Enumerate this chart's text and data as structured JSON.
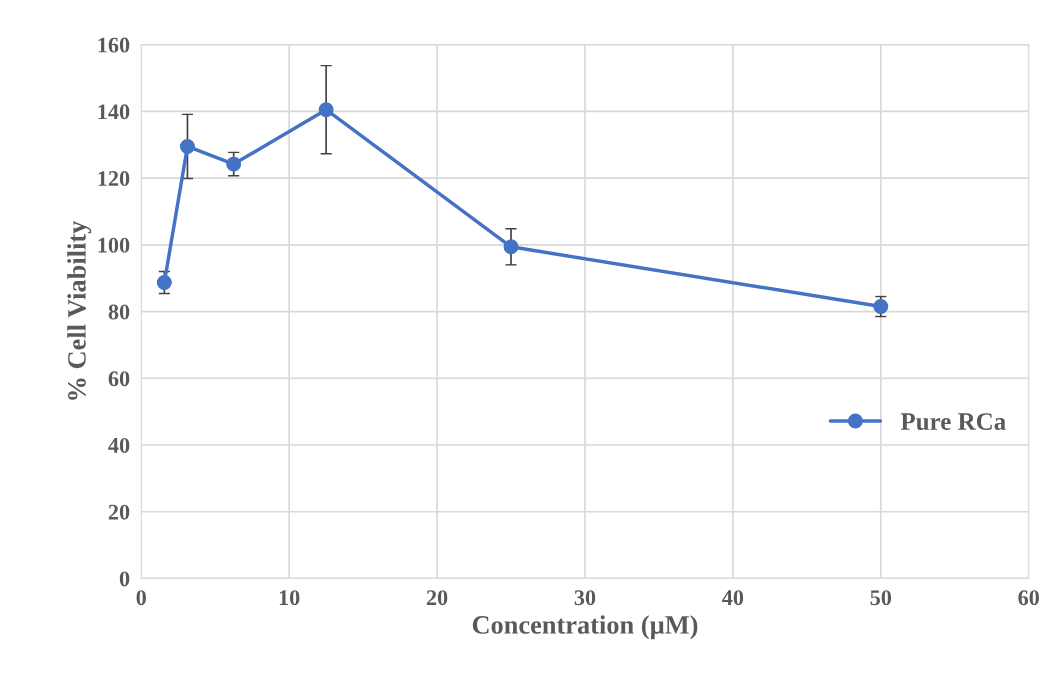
{
  "chart_data": {
    "type": "line",
    "xlabel": "Concentration (µM)",
    "ylabel": "% Cell Viability",
    "x": [
      1.5625,
      3.125,
      6.25,
      12.5,
      25,
      50
    ],
    "series": [
      {
        "name": "Pure RCa",
        "color": "#4472c4",
        "values": [
          88.7,
          129.5,
          124.2,
          140.5,
          99.4,
          81.5
        ],
        "errors": [
          3.3,
          9.6,
          3.5,
          13.2,
          5.4,
          3.0
        ]
      }
    ],
    "xlim": [
      0,
      60
    ],
    "xticks": [
      0,
      10,
      20,
      30,
      40,
      50,
      60
    ],
    "ylim": [
      0,
      160
    ],
    "yticks": [
      0,
      20,
      40,
      60,
      80,
      100,
      120,
      140,
      160
    ],
    "grid": true,
    "legend": "center right",
    "marker": "circle",
    "line_style": "solid"
  }
}
